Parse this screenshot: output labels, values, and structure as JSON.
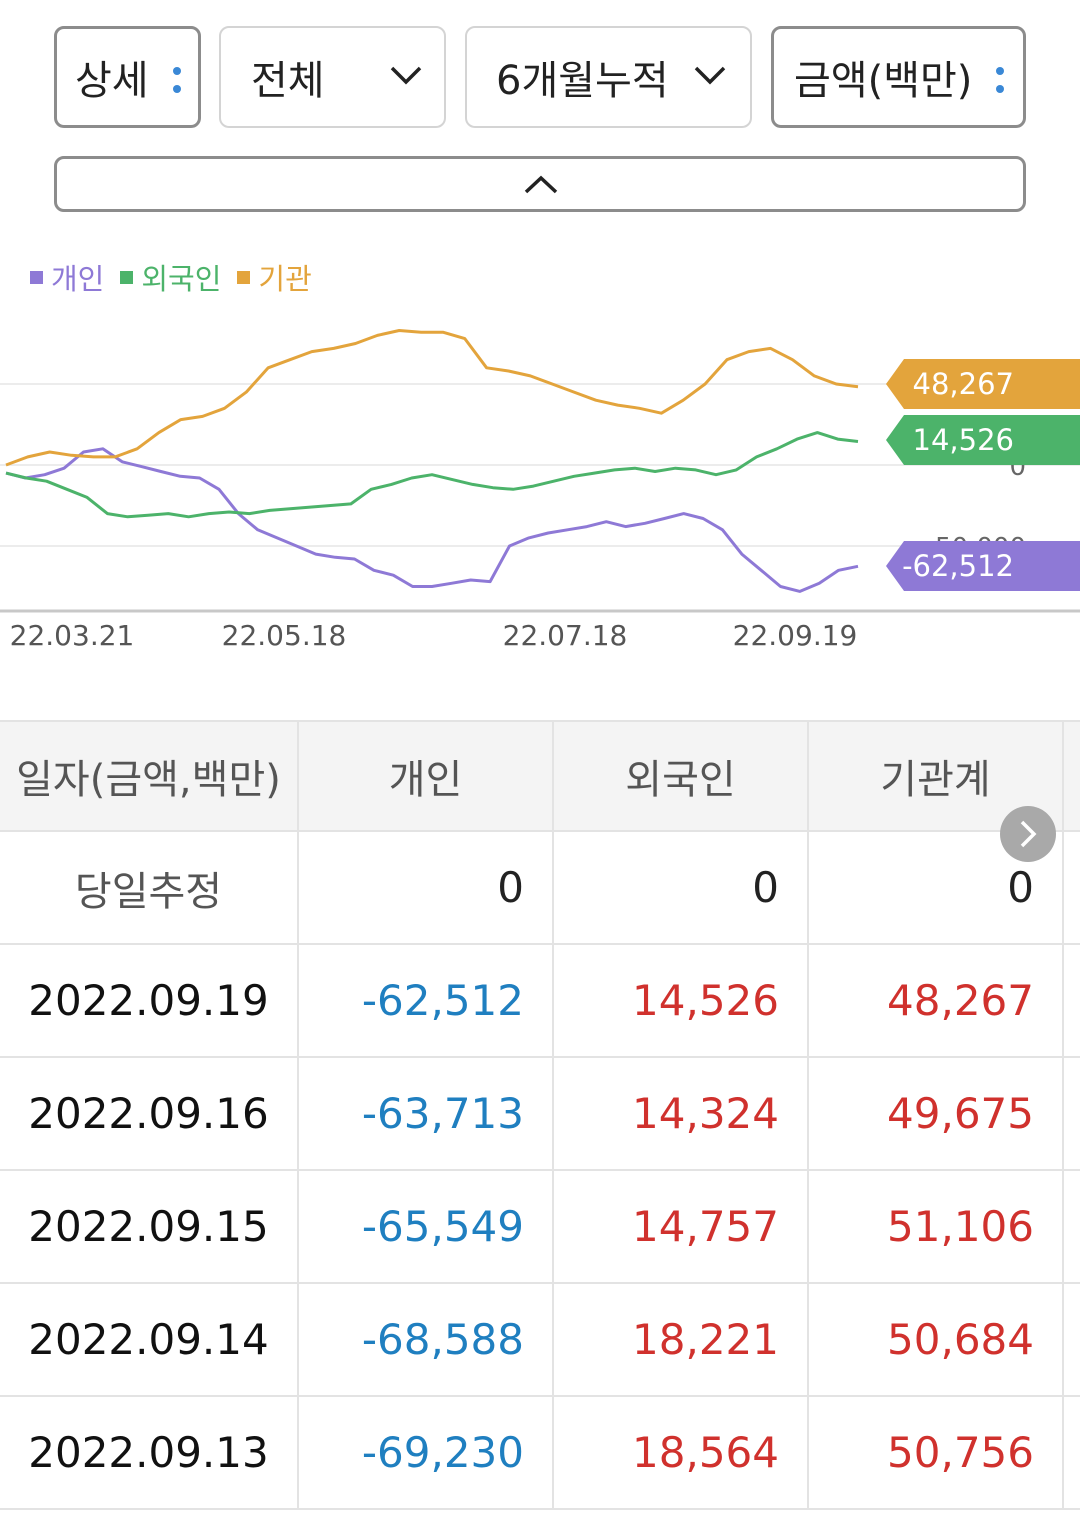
{
  "filters": {
    "detail": "상세",
    "scope": "전체",
    "period": "6개월누적",
    "unit": "금액(백만)"
  },
  "legend": [
    {
      "label": "개인",
      "color": "#8e79d6"
    },
    {
      "label": "외국인",
      "color": "#4cb36a"
    },
    {
      "label": "기관",
      "color": "#e3a43c"
    }
  ],
  "chart_data": {
    "type": "line",
    "x_ticks": [
      "22.03.21",
      "22.05.18",
      "22.07.18",
      "22.09.19"
    ],
    "y_ticks": [
      "0",
      "-50,000"
    ],
    "series": [
      {
        "name": "개인",
        "color": "#8e79d6",
        "last_label": "-62,512",
        "values": [
          -5000,
          -8000,
          -6000,
          -2000,
          8000,
          10000,
          2000,
          -1000,
          -4000,
          -7000,
          -8000,
          -15000,
          -30000,
          -40000,
          -45000,
          -50000,
          -55000,
          -57000,
          -58000,
          -65000,
          -68000,
          -75000,
          -75000,
          -73000,
          -71000,
          -72000,
          -50000,
          -45000,
          -42000,
          -40000,
          -38000,
          -35000,
          -38000,
          -36000,
          -33000,
          -30000,
          -33000,
          -40000,
          -55000,
          -65000,
          -75000,
          -78000,
          -73000,
          -65000,
          -62512
        ]
      },
      {
        "name": "외국인",
        "color": "#4cb36a",
        "last_label": "14,526",
        "values": [
          -5000,
          -8000,
          -10000,
          -15000,
          -20000,
          -30000,
          -32000,
          -31000,
          -30000,
          -32000,
          -30000,
          -29000,
          -30000,
          -28000,
          -27000,
          -26000,
          -25000,
          -24000,
          -15000,
          -12000,
          -8000,
          -6000,
          -9000,
          -12000,
          -14000,
          -15000,
          -13000,
          -10000,
          -7000,
          -5000,
          -3000,
          -2000,
          -4000,
          -2000,
          -3000,
          -6000,
          -3000,
          5000,
          10000,
          16000,
          20000,
          16000,
          14526
        ]
      },
      {
        "name": "기관",
        "color": "#e3a43c",
        "last_label": "48,267",
        "values": [
          0,
          5000,
          8000,
          6000,
          5000,
          5000,
          10000,
          20000,
          28000,
          30000,
          35000,
          45000,
          60000,
          65000,
          70000,
          72000,
          75000,
          80000,
          83000,
          82000,
          82000,
          78000,
          60000,
          58000,
          55000,
          50000,
          45000,
          40000,
          37000,
          35000,
          32000,
          40000,
          50000,
          65000,
          70000,
          72000,
          65000,
          55000,
          50000,
          48267
        ]
      }
    ]
  },
  "table": {
    "headers": [
      "일자(금액,백만)",
      "개인",
      "외국인",
      "기관계"
    ],
    "rows": [
      [
        "당일추정",
        "0",
        "0",
        "0"
      ],
      [
        "2022.09.19",
        "-62,512",
        "14,526",
        "48,267"
      ],
      [
        "2022.09.16",
        "-63,713",
        "14,324",
        "49,675"
      ],
      [
        "2022.09.15",
        "-65,549",
        "14,757",
        "51,106"
      ],
      [
        "2022.09.14",
        "-68,588",
        "18,221",
        "50,684"
      ],
      [
        "2022.09.13",
        "-69,230",
        "18,564",
        "50,756"
      ]
    ]
  }
}
